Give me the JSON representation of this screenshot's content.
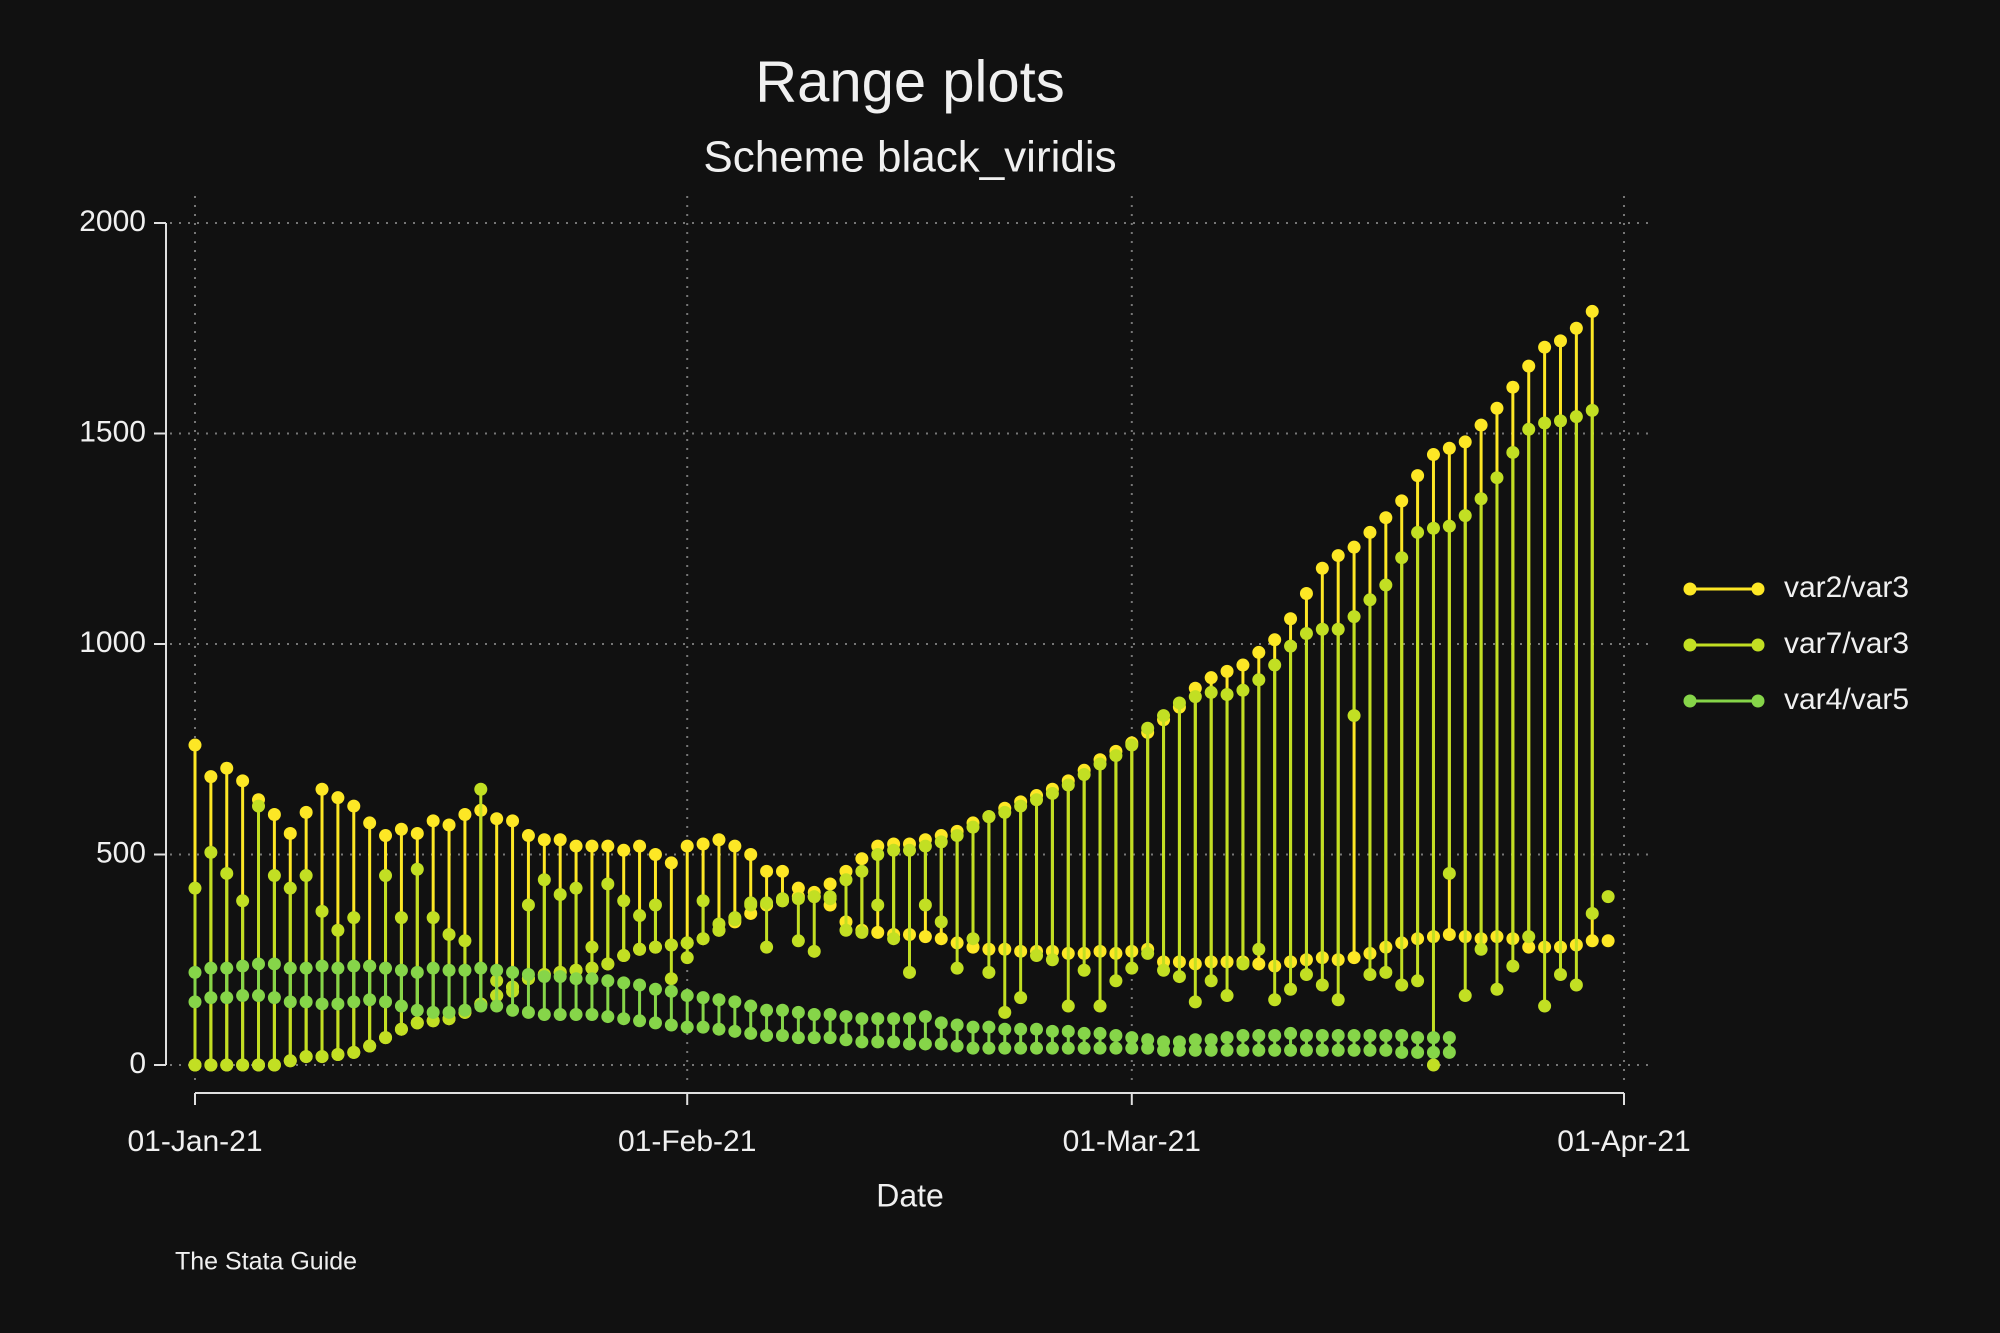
{
  "chart_data": {
    "type": "rangeplot",
    "title": "Range plots",
    "subtitle": "Scheme black_viridis",
    "x_label": "Date",
    "note": "The Stata Guide",
    "x": [
      "2021-01-01",
      "2021-01-02",
      "2021-01-03",
      "2021-01-04",
      "2021-01-05",
      "2021-01-06",
      "2021-01-07",
      "2021-01-08",
      "2021-01-09",
      "2021-01-10",
      "2021-01-11",
      "2021-01-12",
      "2021-01-13",
      "2021-01-14",
      "2021-01-15",
      "2021-01-16",
      "2021-01-17",
      "2021-01-18",
      "2021-01-19",
      "2021-01-20",
      "2021-01-21",
      "2021-01-22",
      "2021-01-23",
      "2021-01-24",
      "2021-01-25",
      "2021-01-26",
      "2021-01-27",
      "2021-01-28",
      "2021-01-29",
      "2021-01-30",
      "2021-01-31",
      "2021-02-01",
      "2021-02-02",
      "2021-02-03",
      "2021-02-04",
      "2021-02-05",
      "2021-02-06",
      "2021-02-07",
      "2021-02-08",
      "2021-02-09",
      "2021-02-10",
      "2021-02-11",
      "2021-02-12",
      "2021-02-13",
      "2021-02-14",
      "2021-02-15",
      "2021-02-16",
      "2021-02-17",
      "2021-02-18",
      "2021-02-19",
      "2021-02-20",
      "2021-02-21",
      "2021-02-22",
      "2021-02-23",
      "2021-02-24",
      "2021-02-25",
      "2021-02-26",
      "2021-02-27",
      "2021-02-28",
      "2021-03-01",
      "2021-03-02",
      "2021-03-03",
      "2021-03-04",
      "2021-03-05",
      "2021-03-06",
      "2021-03-07",
      "2021-03-08",
      "2021-03-09",
      "2021-03-10",
      "2021-03-11",
      "2021-03-12",
      "2021-03-13",
      "2021-03-14",
      "2021-03-15",
      "2021-03-16",
      "2021-03-17",
      "2021-03-18",
      "2021-03-19",
      "2021-03-20",
      "2021-03-21",
      "2021-03-22",
      "2021-03-23",
      "2021-03-24",
      "2021-03-25",
      "2021-03-26",
      "2021-03-27",
      "2021-03-28",
      "2021-03-29",
      "2021-03-30",
      "2021-03-31"
    ],
    "series": [
      {
        "name": "var2/var3",
        "color": "#fde725",
        "y1": [
          760,
          685,
          705,
          675,
          630,
          595,
          550,
          600,
          655,
          635,
          615,
          575,
          545,
          560,
          550,
          580,
          570,
          595,
          605,
          585,
          580,
          545,
          535,
          535,
          520,
          520,
          520,
          510,
          520,
          500,
          480,
          520,
          525,
          535,
          520,
          500,
          460,
          460,
          420,
          410,
          430,
          460,
          490,
          520,
          525,
          525,
          535,
          545,
          555,
          575,
          590,
          610,
          625,
          640,
          655,
          675,
          700,
          725,
          745,
          765,
          790,
          820,
          850,
          895,
          920,
          935,
          950,
          980,
          1010,
          1060,
          1120,
          1180,
          1210,
          1230,
          1265,
          1300,
          1340,
          1400,
          1450,
          1465,
          1480,
          1520,
          1560,
          1610,
          1660,
          1705,
          1720,
          1750,
          1790,
          null
        ],
        "y2": [
          0,
          0,
          0,
          0,
          0,
          0,
          10,
          20,
          20,
          25,
          30,
          45,
          65,
          85,
          100,
          105,
          110,
          125,
          145,
          165,
          185,
          205,
          215,
          220,
          225,
          230,
          240,
          260,
          275,
          280,
          285,
          290,
          300,
          320,
          340,
          360,
          380,
          390,
          400,
          400,
          380,
          340,
          320,
          315,
          310,
          310,
          305,
          300,
          290,
          280,
          275,
          275,
          270,
          270,
          270,
          265,
          265,
          270,
          265,
          270,
          275,
          245,
          245,
          240,
          245,
          245,
          245,
          240,
          235,
          245,
          250,
          255,
          250,
          255,
          265,
          280,
          290,
          300,
          305,
          310,
          305,
          300,
          305,
          300,
          280,
          280,
          280,
          285,
          295,
          295
        ]
      },
      {
        "name": "var7/var3",
        "color": "#c2df23",
        "y1": [
          0,
          0,
          0,
          0,
          0,
          0,
          10,
          20,
          20,
          25,
          30,
          45,
          65,
          85,
          100,
          105,
          110,
          125,
          145,
          165,
          185,
          205,
          215,
          220,
          225,
          230,
          240,
          260,
          275,
          280,
          285,
          290,
          300,
          320,
          345,
          380,
          385,
          390,
          395,
          400,
          395,
          440,
          460,
          500,
          510,
          510,
          520,
          530,
          545,
          565,
          590,
          600,
          615,
          630,
          645,
          665,
          690,
          715,
          735,
          760,
          800,
          830,
          860,
          875,
          885,
          880,
          890,
          915,
          950,
          995,
          1025,
          1035,
          1035,
          1065,
          1105,
          1140,
          1205,
          1265,
          1275,
          1280,
          1305,
          1345,
          1395,
          1455,
          1510,
          1525,
          1530,
          1540,
          1555,
          null
        ],
        "y2": [
          420,
          505,
          455,
          390,
          615,
          450,
          420,
          450,
          365,
          320,
          350,
          235,
          450,
          350,
          465,
          350,
          310,
          295,
          655,
          200,
          175,
          380,
          440,
          405,
          420,
          280,
          430,
          390,
          355,
          380,
          205,
          255,
          390,
          335,
          350,
          385,
          280,
          395,
          295,
          270,
          400,
          320,
          315,
          380,
          300,
          220,
          380,
          340,
          230,
          300,
          220,
          125,
          160,
          260,
          250,
          140,
          225,
          140,
          200,
          230,
          265,
          225,
          210,
          150,
          200,
          165,
          240,
          275,
          155,
          180,
          215,
          190,
          155,
          830,
          215,
          220,
          190,
          200,
          0,
          455,
          165,
          275,
          180,
          235,
          305,
          140,
          215,
          190,
          360,
          400
        ]
      },
      {
        "name": "var4/var5",
        "color": "#86d549",
        "y1": [
          220,
          230,
          230,
          235,
          240,
          240,
          230,
          230,
          235,
          230,
          235,
          235,
          230,
          225,
          220,
          230,
          225,
          225,
          230,
          225,
          220,
          215,
          210,
          210,
          205,
          205,
          200,
          195,
          190,
          180,
          175,
          165,
          160,
          155,
          150,
          140,
          130,
          130,
          125,
          120,
          120,
          115,
          110,
          110,
          110,
          110,
          115,
          100,
          95,
          90,
          90,
          85,
          85,
          85,
          80,
          80,
          75,
          75,
          70,
          65,
          60,
          55,
          55,
          60,
          60,
          65,
          70,
          70,
          70,
          75,
          70,
          70,
          70,
          70,
          70,
          70,
          70,
          65,
          65,
          65,
          null,
          null,
          null,
          null,
          null,
          null,
          null,
          null,
          null,
          null
        ],
        "y2": [
          150,
          160,
          160,
          165,
          165,
          160,
          150,
          150,
          145,
          145,
          150,
          155,
          150,
          140,
          130,
          125,
          125,
          130,
          140,
          140,
          130,
          125,
          120,
          120,
          120,
          120,
          115,
          110,
          105,
          100,
          95,
          90,
          90,
          85,
          80,
          75,
          70,
          70,
          65,
          65,
          65,
          60,
          55,
          55,
          55,
          50,
          50,
          50,
          45,
          40,
          40,
          40,
          40,
          40,
          40,
          40,
          40,
          40,
          40,
          40,
          40,
          35,
          35,
          35,
          35,
          35,
          35,
          35,
          35,
          35,
          35,
          35,
          35,
          35,
          35,
          35,
          30,
          30,
          30,
          30,
          null,
          null,
          null,
          null,
          null,
          null,
          null,
          null,
          null,
          null
        ]
      }
    ],
    "xlim": [
      "2021-01-01",
      "2021-04-01"
    ],
    "xticks": [
      {
        "value": "2021-01-01",
        "label": "01-Jan-21"
      },
      {
        "value": "2021-02-01",
        "label": "01-Feb-21"
      },
      {
        "value": "2021-03-01",
        "label": "01-Mar-21"
      },
      {
        "value": "2021-04-01",
        "label": "01-Apr-21"
      }
    ],
    "ylim": [
      0,
      2000
    ],
    "yticks": [
      0,
      500,
      1000,
      1500,
      2000
    ],
    "grid": true,
    "legend_position": "right"
  }
}
